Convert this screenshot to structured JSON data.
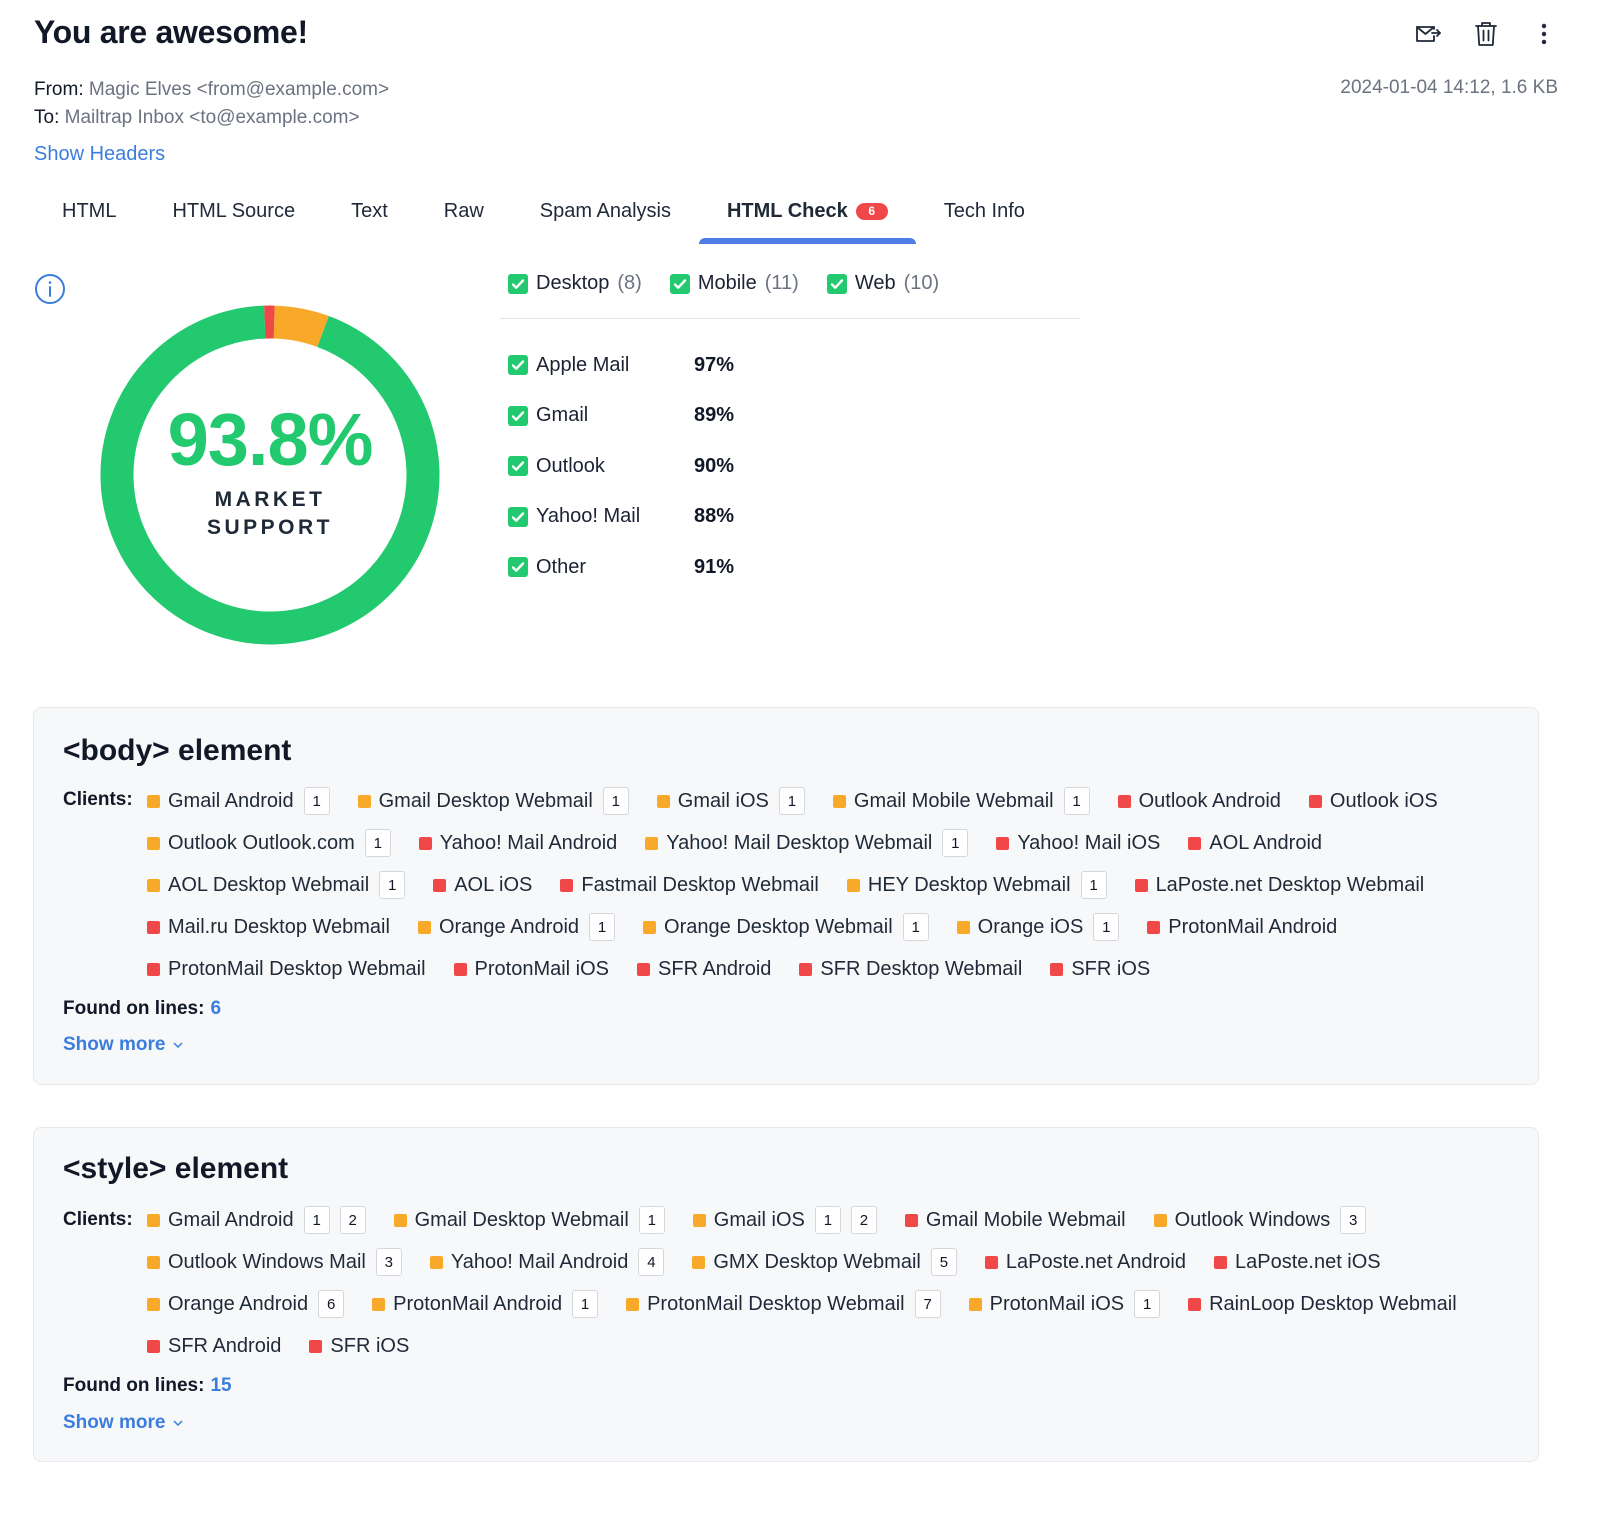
{
  "email": {
    "subject": "You are awesome!",
    "from_label": "From:",
    "from_value": "Magic Elves <from@example.com>",
    "to_label": "To:",
    "to_value": "Mailtrap Inbox <to@example.com>",
    "date_size": "2024-01-04 14:12, 1.6 KB",
    "show_headers": "Show Headers"
  },
  "actions": {
    "icons": [
      "forward-mail-icon",
      "trash-icon",
      "more-vertical-icon"
    ]
  },
  "tabs": [
    {
      "label": "HTML"
    },
    {
      "label": "HTML Source"
    },
    {
      "label": "Text"
    },
    {
      "label": "Raw"
    },
    {
      "label": "Spam Analysis"
    },
    {
      "label": "HTML Check",
      "badge": "6",
      "active": true
    },
    {
      "label": "Tech Info"
    }
  ],
  "support": {
    "percent": "93.8%",
    "label_line1": "MARKET",
    "label_line2": "SUPPORT",
    "segments": [
      {
        "share": 0.01,
        "color": "#f04848"
      },
      {
        "share": 0.052,
        "color": "#f9a92a"
      },
      {
        "share": 0.938,
        "color": "#22c96e"
      }
    ]
  },
  "filters": [
    {
      "label": "Desktop",
      "count": "(8)"
    },
    {
      "label": "Mobile",
      "count": "(11)"
    },
    {
      "label": "Web",
      "count": "(10)"
    }
  ],
  "clients": [
    {
      "name": "Apple Mail",
      "pct": "97%"
    },
    {
      "name": "Gmail",
      "pct": "89%"
    },
    {
      "name": "Outlook",
      "pct": "90%"
    },
    {
      "name": "Yahoo! Mail",
      "pct": "88%"
    },
    {
      "name": "Other",
      "pct": "91%"
    }
  ],
  "colors": {
    "accent": "#3b7ddd",
    "success": "#22c96e",
    "warning": "#f9a92a",
    "danger": "#f04848"
  },
  "cards": [
    {
      "title": "<body> element",
      "clients_label": "Clients:",
      "found_label": "Found on lines:",
      "found_lines": "6",
      "show_more": "Show more",
      "chips": [
        {
          "name": "Gmail Android",
          "level": "orange",
          "notes": [
            "1"
          ]
        },
        {
          "name": "Gmail Desktop Webmail",
          "level": "orange",
          "notes": [
            "1"
          ]
        },
        {
          "name": "Gmail iOS",
          "level": "orange",
          "notes": [
            "1"
          ]
        },
        {
          "name": "Gmail Mobile Webmail",
          "level": "orange",
          "notes": [
            "1"
          ]
        },
        {
          "name": "Outlook Android",
          "level": "red",
          "notes": []
        },
        {
          "name": "Outlook iOS",
          "level": "red",
          "notes": []
        },
        {
          "name": "Outlook Outlook.com",
          "level": "orange",
          "notes": [
            "1"
          ]
        },
        {
          "name": "Yahoo! Mail Android",
          "level": "red",
          "notes": []
        },
        {
          "name": "Yahoo! Mail Desktop Webmail",
          "level": "orange",
          "notes": [
            "1"
          ]
        },
        {
          "name": "Yahoo! Mail iOS",
          "level": "red",
          "notes": []
        },
        {
          "name": "AOL Android",
          "level": "red",
          "notes": []
        },
        {
          "name": "AOL Desktop Webmail",
          "level": "orange",
          "notes": [
            "1"
          ]
        },
        {
          "name": "AOL iOS",
          "level": "red",
          "notes": []
        },
        {
          "name": "Fastmail Desktop Webmail",
          "level": "red",
          "notes": []
        },
        {
          "name": "HEY Desktop Webmail",
          "level": "orange",
          "notes": [
            "1"
          ]
        },
        {
          "name": "LaPoste.net Desktop Webmail",
          "level": "red",
          "notes": []
        },
        {
          "name": "Mail.ru Desktop Webmail",
          "level": "red",
          "notes": []
        },
        {
          "name": "Orange Android",
          "level": "orange",
          "notes": [
            "1"
          ]
        },
        {
          "name": "Orange Desktop Webmail",
          "level": "orange",
          "notes": [
            "1"
          ]
        },
        {
          "name": "Orange iOS",
          "level": "orange",
          "notes": [
            "1"
          ]
        },
        {
          "name": "ProtonMail Android",
          "level": "red",
          "notes": []
        },
        {
          "name": "ProtonMail Desktop Webmail",
          "level": "red",
          "notes": []
        },
        {
          "name": "ProtonMail iOS",
          "level": "red",
          "notes": []
        },
        {
          "name": "SFR Android",
          "level": "red",
          "notes": []
        },
        {
          "name": "SFR Desktop Webmail",
          "level": "red",
          "notes": []
        },
        {
          "name": "SFR iOS",
          "level": "red",
          "notes": []
        }
      ]
    },
    {
      "title": "<style> element",
      "clients_label": "Clients:",
      "found_label": "Found on lines:",
      "found_lines": "15",
      "show_more": "Show more",
      "chips": [
        {
          "name": "Gmail Android",
          "level": "orange",
          "notes": [
            "1",
            "2"
          ]
        },
        {
          "name": "Gmail Desktop Webmail",
          "level": "orange",
          "notes": [
            "1"
          ]
        },
        {
          "name": "Gmail iOS",
          "level": "orange",
          "notes": [
            "1",
            "2"
          ]
        },
        {
          "name": "Gmail Mobile Webmail",
          "level": "red",
          "notes": []
        },
        {
          "name": "Outlook Windows",
          "level": "orange",
          "notes": [
            "3"
          ]
        },
        {
          "name": "Outlook Windows Mail",
          "level": "orange",
          "notes": [
            "3"
          ]
        },
        {
          "name": "Yahoo! Mail Android",
          "level": "orange",
          "notes": [
            "4"
          ]
        },
        {
          "name": "GMX Desktop Webmail",
          "level": "orange",
          "notes": [
            "5"
          ]
        },
        {
          "name": "LaPoste.net Android",
          "level": "red",
          "notes": []
        },
        {
          "name": "LaPoste.net iOS",
          "level": "red",
          "notes": []
        },
        {
          "name": "Orange Android",
          "level": "orange",
          "notes": [
            "6"
          ]
        },
        {
          "name": "ProtonMail Android",
          "level": "orange",
          "notes": [
            "1"
          ]
        },
        {
          "name": "ProtonMail Desktop Webmail",
          "level": "orange",
          "notes": [
            "7"
          ]
        },
        {
          "name": "ProtonMail iOS",
          "level": "orange",
          "notes": [
            "1"
          ]
        },
        {
          "name": "RainLoop Desktop Webmail",
          "level": "red",
          "notes": []
        },
        {
          "name": "SFR Android",
          "level": "red",
          "notes": []
        },
        {
          "name": "SFR iOS",
          "level": "red",
          "notes": []
        }
      ]
    }
  ]
}
